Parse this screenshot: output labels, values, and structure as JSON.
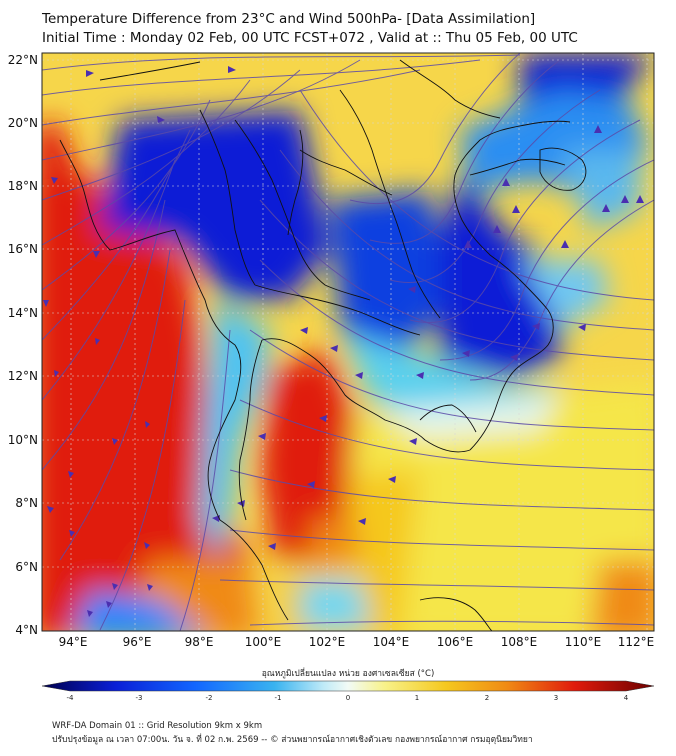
{
  "header": {
    "title_line1": "Temperature Difference from 23°C and Wind 500hPa- [Data Assimilation]",
    "title_line2": "Initial Time : Monday 02 Feb, 00 UTC FCST+072 , Valid at ::  Thu 05 Feb, 00 UTC"
  },
  "map": {
    "lat_labels": [
      "22°N",
      "20°N",
      "18°N",
      "16°N",
      "14°N",
      "12°N",
      "10°N",
      "8°N",
      "6°N",
      "4°N"
    ],
    "lon_labels": [
      "94°E",
      "96°E",
      "98°E",
      "100°E",
      "102°E",
      "104°E",
      "106°E",
      "108°E",
      "110°E",
      "112°E"
    ],
    "lat_range": [
      4,
      22
    ],
    "lon_range": [
      93,
      112
    ],
    "field": "temperature difference (°C)",
    "overlay": "500hPa wind streamlines",
    "colors": {
      "cold_deep": "#0a1fd6",
      "cold": "#1266ff",
      "cool": "#6fc7f2",
      "neutral": "#f2fbf6",
      "warm": "#f5e64a",
      "hot": "#f08a14",
      "hottest": "#e01b0c",
      "streamline": "#5b4aa8",
      "boundary": "#111111"
    }
  },
  "colorbar": {
    "title": "อุณหภูมิเปลี่ยนแปลง หน่วย องศาเซลเซียส (°C)",
    "ticks": [
      "-4",
      "-3",
      "-2",
      "-1",
      "0",
      "1",
      "2",
      "3",
      "4"
    ],
    "range": [
      -4,
      4
    ]
  },
  "footer": {
    "line1": "WRF-DA Domain 01 :: Grid Resolution 9km x 9km",
    "line2": "ปรับปรุงข้อมูล ณ เวลา 07:00น. วัน จ. ที่ 02 ก.พ. 2569 -- © ส่วนพยากรณ์อากาศเชิงตัวเลข กองพยากรณ์อากาศ กรมอุตุนิยมวิทยา"
  }
}
